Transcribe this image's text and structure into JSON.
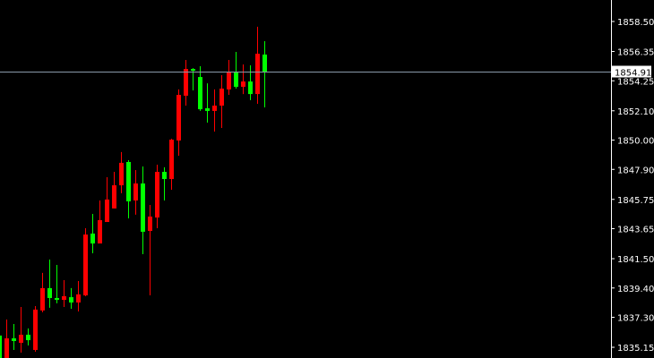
{
  "chart_data": {
    "type": "candlestick",
    "title": "",
    "xlabel": "",
    "ylabel": "",
    "ylim": [
      1834.4,
      1860.0
    ],
    "grid": false,
    "y_ticks": [
      "1858.50",
      "1856.35",
      "1854.25",
      "1852.10",
      "1850.00",
      "1847.90",
      "1845.75",
      "1843.65",
      "1841.50",
      "1839.40",
      "1837.30",
      "1835.15"
    ],
    "current_price": "1854.91",
    "colors": {
      "background": "#000000",
      "bullish": "#ff0000",
      "bearish": "#00ff00",
      "axis": "#ffffff",
      "price_line": "#8a9aaa",
      "price_label_bg": "#ffffff",
      "price_label_text": "#000000"
    },
    "candles": [
      {
        "o": 1835.99,
        "h": 1836.1,
        "l": 1834.2,
        "c": 1834.3
      },
      {
        "o": 1834.3,
        "h": 1837.14,
        "l": 1834.2,
        "c": 1835.79
      },
      {
        "o": 1835.79,
        "h": 1836.82,
        "l": 1834.96,
        "c": 1835.6
      },
      {
        "o": 1835.47,
        "h": 1838.04,
        "l": 1834.77,
        "c": 1836.05
      },
      {
        "o": 1836.05,
        "h": 1836.5,
        "l": 1835.28,
        "c": 1835.66
      },
      {
        "o": 1834.96,
        "h": 1838.1,
        "l": 1834.83,
        "c": 1837.85
      },
      {
        "o": 1837.79,
        "h": 1840.48,
        "l": 1837.66,
        "c": 1839.39
      },
      {
        "o": 1839.39,
        "h": 1841.44,
        "l": 1837.98,
        "c": 1838.68
      },
      {
        "o": 1838.68,
        "h": 1841.05,
        "l": 1838.3,
        "c": 1838.55
      },
      {
        "o": 1838.55,
        "h": 1839.96,
        "l": 1838.04,
        "c": 1838.81
      },
      {
        "o": 1838.74,
        "h": 1839.39,
        "l": 1837.91,
        "c": 1838.36
      },
      {
        "o": 1838.36,
        "h": 1839.9,
        "l": 1837.72,
        "c": 1838.94
      },
      {
        "o": 1838.87,
        "h": 1843.68,
        "l": 1838.81,
        "c": 1843.23
      },
      {
        "o": 1843.3,
        "h": 1844.71,
        "l": 1841.89,
        "c": 1842.59
      },
      {
        "o": 1842.59,
        "h": 1845.67,
        "l": 1842.59,
        "c": 1844.26
      },
      {
        "o": 1844.13,
        "h": 1847.34,
        "l": 1844.13,
        "c": 1845.74
      },
      {
        "o": 1845.1,
        "h": 1847.72,
        "l": 1845.1,
        "c": 1846.76
      },
      {
        "o": 1846.76,
        "h": 1849.14,
        "l": 1846.19,
        "c": 1848.37
      },
      {
        "o": 1848.43,
        "h": 1848.56,
        "l": 1844.39,
        "c": 1845.61
      },
      {
        "o": 1845.67,
        "h": 1847.85,
        "l": 1844.65,
        "c": 1846.89
      },
      {
        "o": 1846.89,
        "h": 1848.11,
        "l": 1841.82,
        "c": 1843.43
      },
      {
        "o": 1843.49,
        "h": 1845.35,
        "l": 1838.87,
        "c": 1844.52
      },
      {
        "o": 1844.45,
        "h": 1848.24,
        "l": 1843.68,
        "c": 1847.72
      },
      {
        "o": 1847.72,
        "h": 1848.05,
        "l": 1845.67,
        "c": 1847.21
      },
      {
        "o": 1847.21,
        "h": 1850.1,
        "l": 1846.44,
        "c": 1850.03
      },
      {
        "o": 1849.97,
        "h": 1853.63,
        "l": 1848.88,
        "c": 1853.24
      },
      {
        "o": 1853.18,
        "h": 1855.74,
        "l": 1852.47,
        "c": 1855.1
      },
      {
        "o": 1855.1,
        "h": 1855.16,
        "l": 1853.56,
        "c": 1854.97
      },
      {
        "o": 1854.52,
        "h": 1855.29,
        "l": 1852.09,
        "c": 1852.21
      },
      {
        "o": 1852.28,
        "h": 1854.07,
        "l": 1851.25,
        "c": 1852.09
      },
      {
        "o": 1852.09,
        "h": 1853.63,
        "l": 1850.61,
        "c": 1852.47
      },
      {
        "o": 1852.47,
        "h": 1854.65,
        "l": 1850.87,
        "c": 1853.69
      },
      {
        "o": 1853.63,
        "h": 1855.74,
        "l": 1853.24,
        "c": 1854.91
      },
      {
        "o": 1854.84,
        "h": 1856.32,
        "l": 1853.69,
        "c": 1853.82
      },
      {
        "o": 1853.82,
        "h": 1855.42,
        "l": 1853.3,
        "c": 1854.2
      },
      {
        "o": 1854.2,
        "h": 1855.36,
        "l": 1852.86,
        "c": 1853.3
      },
      {
        "o": 1853.3,
        "h": 1858.12,
        "l": 1852.6,
        "c": 1856.19
      },
      {
        "o": 1856.13,
        "h": 1857.09,
        "l": 1852.34,
        "c": 1854.91
      }
    ]
  }
}
